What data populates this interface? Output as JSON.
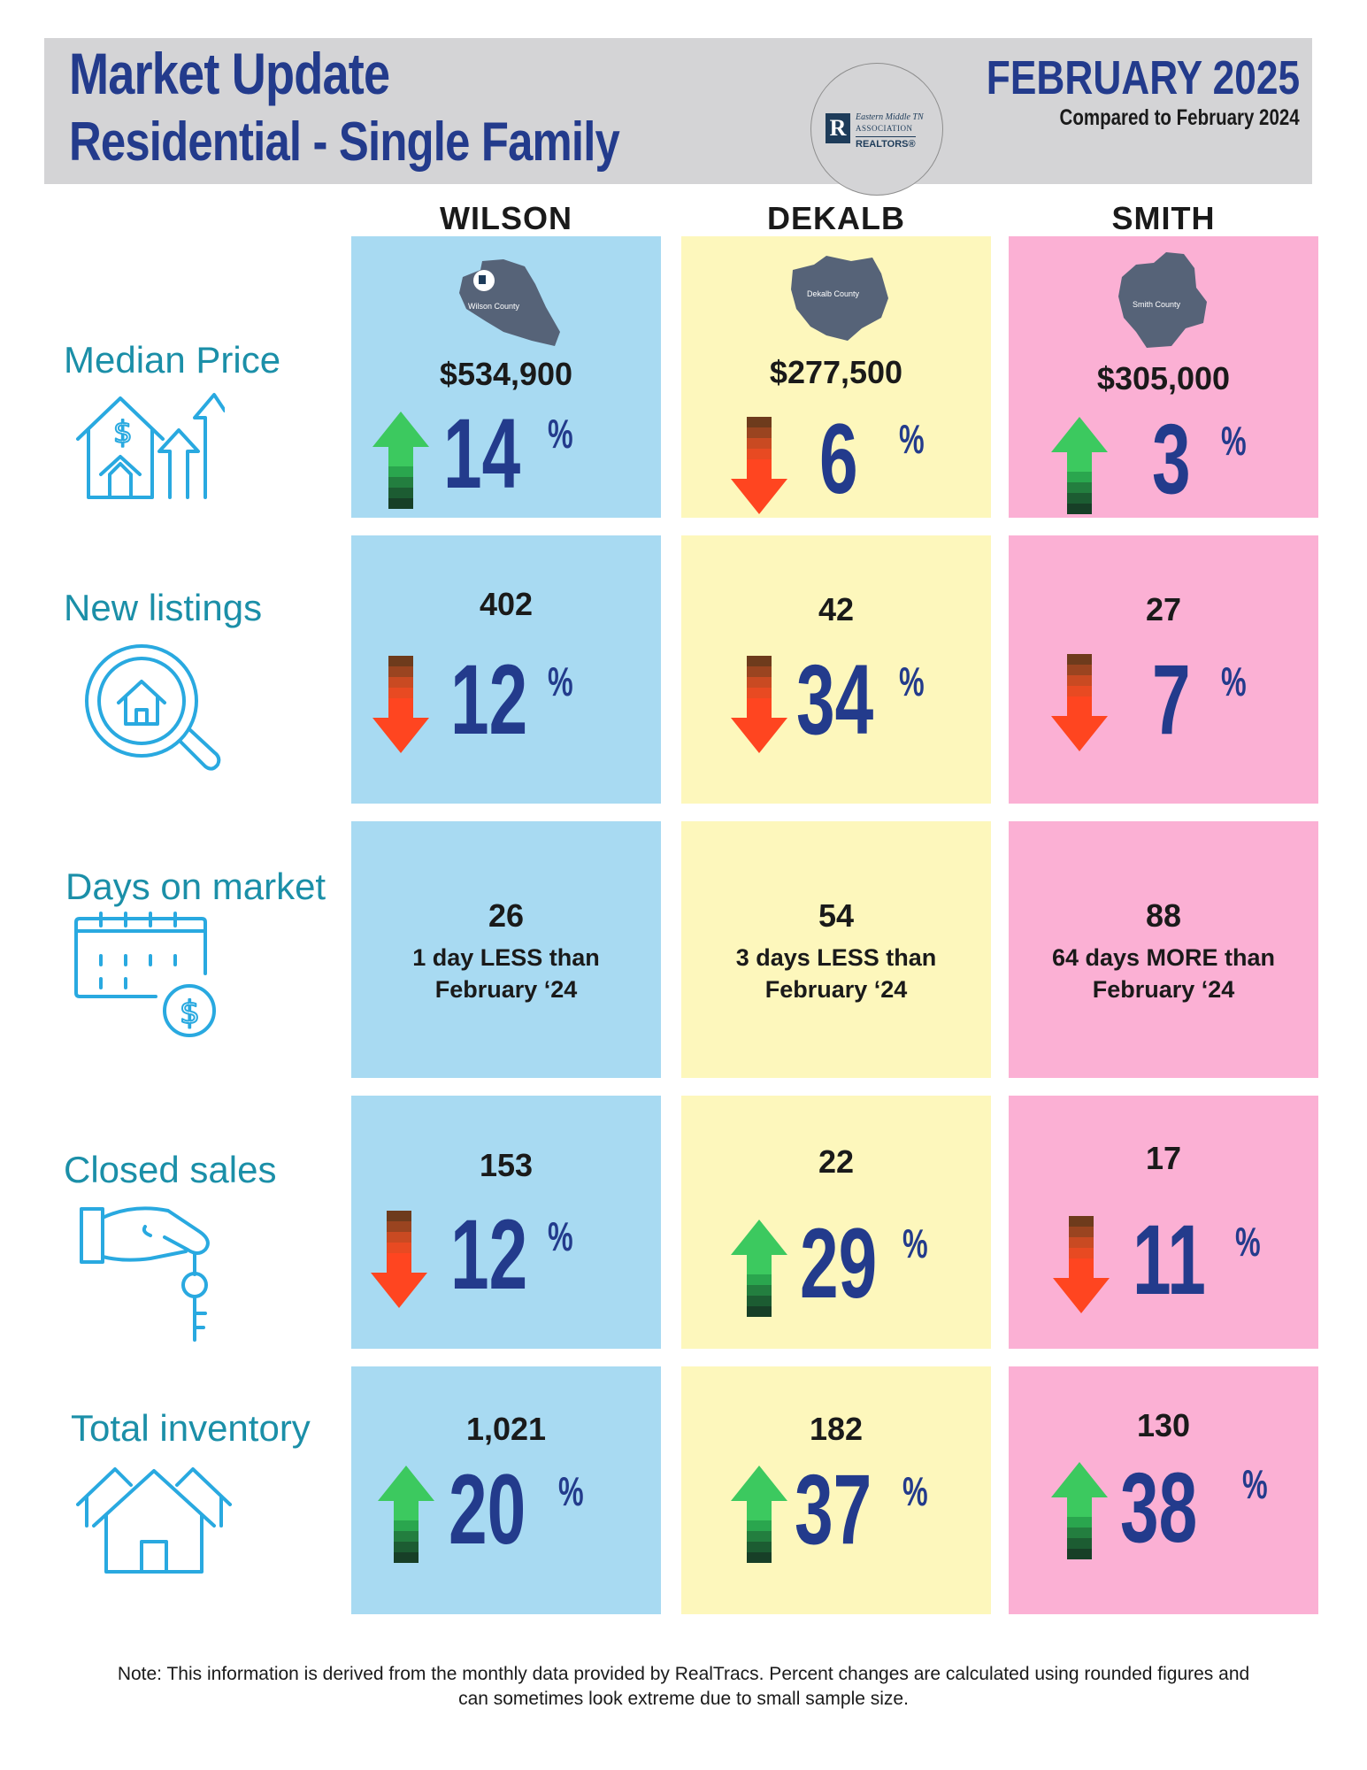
{
  "header": {
    "title_line1": "Market Update",
    "title_line2": "Residential - Single Family",
    "month": "FEBRUARY 2025",
    "compared": "Compared to February 2024",
    "logo": {
      "line1": "Eastern Middle TN",
      "line2": "ASSOCIATION",
      "line3": "REALTORS®",
      "mark": "R"
    }
  },
  "columns": [
    {
      "name": "WILSON",
      "map_label": "Wilson County",
      "color": "#a8daf2"
    },
    {
      "name": "DEKALB",
      "map_label": "Dekalb County",
      "color": "#fdf7bc"
    },
    {
      "name": "SMITH",
      "map_label": "Smith County",
      "color": "#fbb0d4"
    }
  ],
  "rows": {
    "median_price": {
      "label": "Median Price",
      "wilson": {
        "value": "$534,900",
        "change": "14",
        "direction": "up"
      },
      "dekalb": {
        "value": "$277,500",
        "change": "6",
        "direction": "down"
      },
      "smith": {
        "value": "$305,000",
        "change": "3",
        "direction": "up"
      }
    },
    "new_listings": {
      "label": "New listings",
      "wilson": {
        "value": "402",
        "change": "12",
        "direction": "down"
      },
      "dekalb": {
        "value": "42",
        "change": "34",
        "direction": "down"
      },
      "smith": {
        "value": "27",
        "change": "7",
        "direction": "down"
      }
    },
    "days_on_market": {
      "label": "Days on market",
      "wilson": {
        "value": "26",
        "note1": "1 day LESS than",
        "note2": "February ‘24"
      },
      "dekalb": {
        "value": "54",
        "note1": "3 days LESS than",
        "note2": "February ‘24"
      },
      "smith": {
        "value": "88",
        "note1": "64 days MORE than",
        "note2": "February ‘24"
      }
    },
    "closed_sales": {
      "label": "Closed sales",
      "wilson": {
        "value": "153",
        "change": "12",
        "direction": "down"
      },
      "dekalb": {
        "value": "22",
        "change": "29",
        "direction": "up"
      },
      "smith": {
        "value": "17",
        "change": "11",
        "direction": "down"
      }
    },
    "total_inventory": {
      "label": "Total inventory",
      "wilson": {
        "value": "1,021",
        "change": "20",
        "direction": "up"
      },
      "dekalb": {
        "value": "182",
        "change": "37",
        "direction": "up"
      },
      "smith": {
        "value": "130",
        "change": "38",
        "direction": "up"
      }
    }
  },
  "percent_sign": "%",
  "footer": {
    "line1": "Note: This information is derived from the monthly data provided by RealTracs. Percent changes are calculated using rounded figures and",
    "line2": "can sometimes look extreme due to small sample size."
  }
}
